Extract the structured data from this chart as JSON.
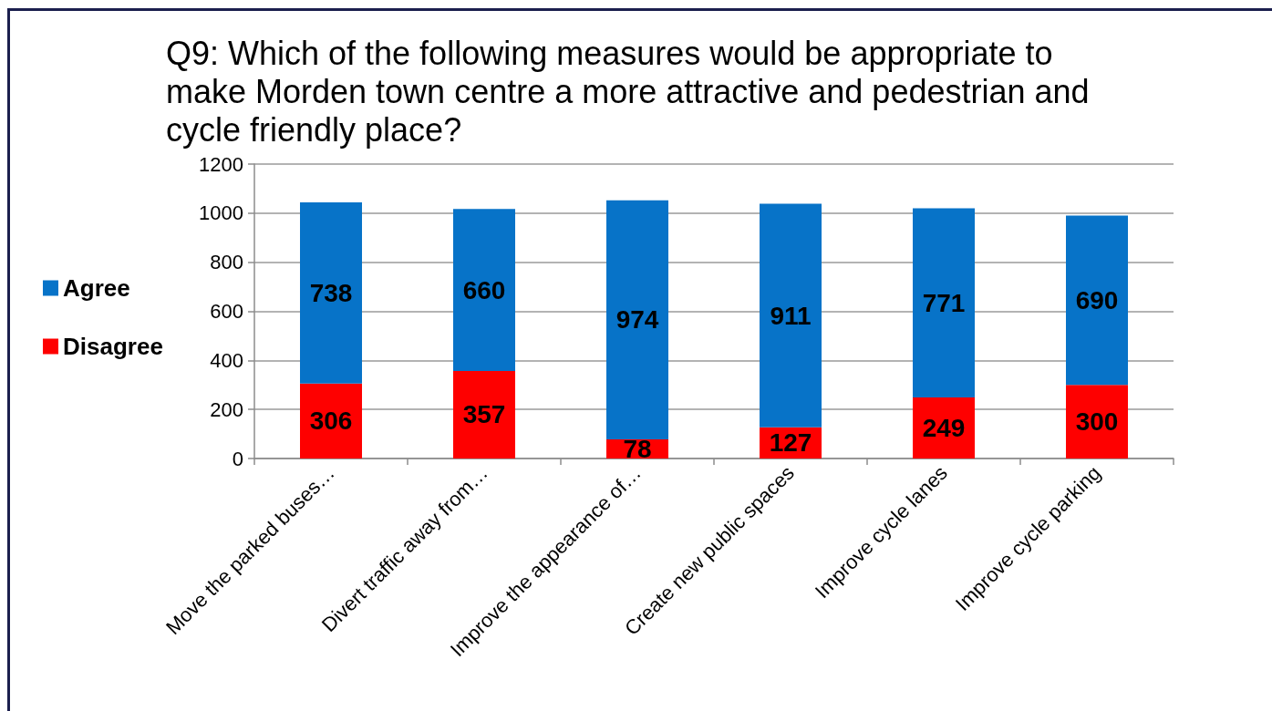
{
  "chart_data": {
    "type": "bar",
    "title": "Q9: Which of the following measures would be appropriate to make Morden town centre a more attractive and pedestrian and cycle friendly place?",
    "categories": [
      "Move the parked buses…",
      "Divert traffic away from…",
      "Improve the appearance of…",
      "Create new public spaces",
      "Improve cycle lanes",
      "Improve cycle parking"
    ],
    "series": [
      {
        "name": "Disagree",
        "color": "#fe0000",
        "values": [
          306,
          357,
          78,
          127,
          249,
          300
        ]
      },
      {
        "name": "Agree",
        "color": "#0773c8",
        "values": [
          738,
          660,
          974,
          911,
          771,
          690
        ]
      }
    ],
    "stacked": true,
    "ylim": [
      0,
      1200
    ],
    "yticks": [
      0,
      200,
      400,
      600,
      800,
      1000,
      1200
    ],
    "grid": "y",
    "legend": "left",
    "data_labels": true
  }
}
